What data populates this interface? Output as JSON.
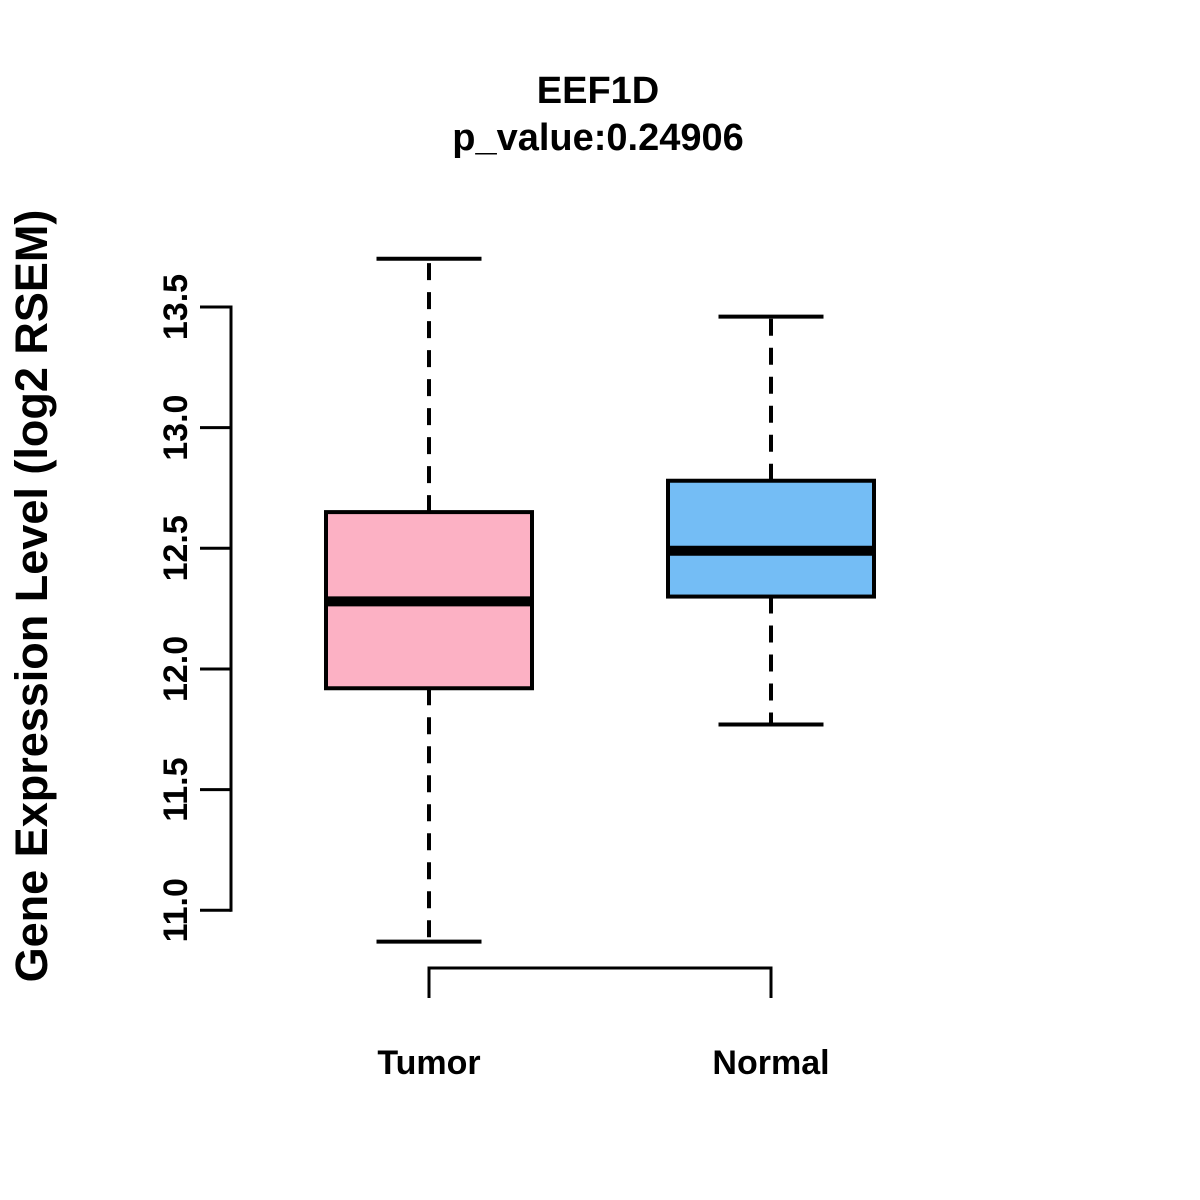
{
  "chart_data": {
    "type": "boxplot",
    "title": "EEF1D",
    "subtitle": "p_value:0.24906",
    "p_value": 0.24906,
    "gene": "EEF1D",
    "ylabel": "Gene Expression Level (log2 RSEM)",
    "xlabel": "",
    "categories": [
      "Tumor",
      "Normal"
    ],
    "yticks": [
      11.0,
      11.5,
      12.0,
      12.5,
      13.0,
      13.5
    ],
    "ytick_labels": [
      "11.0",
      "11.5",
      "12.0",
      "12.5",
      "13.0",
      "13.5"
    ],
    "ylim": [
      10.75,
      13.8
    ],
    "grid": false,
    "legend": "none",
    "series": [
      {
        "name": "Tumor",
        "fill": "#FCB1C4",
        "stats": {
          "whisker_low": 10.87,
          "q1": 11.92,
          "median": 12.28,
          "q3": 12.65,
          "whisker_high": 13.7
        }
      },
      {
        "name": "Normal",
        "fill": "#74BDF5",
        "stats": {
          "whisker_low": 11.77,
          "q1": 12.3,
          "median": 12.49,
          "q3": 12.78,
          "whisker_high": 13.46
        }
      }
    ],
    "annotations": {
      "comparison_bracket": {
        "connects": [
          "Tumor",
          "Normal"
        ]
      }
    },
    "stroke_color": "#000000",
    "background": "#FFFFFF"
  }
}
